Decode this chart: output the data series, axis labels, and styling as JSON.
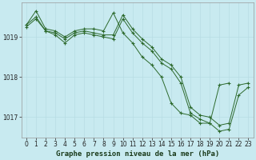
{
  "title": "Graphe pression niveau de la mer (hPa)",
  "background_color": "#c8eaf0",
  "grid_color": "#b8dde4",
  "line_color": "#2d6a2d",
  "xlim": [
    -0.5,
    23.5
  ],
  "ylim": [
    1016.5,
    1019.85
  ],
  "yticks": [
    1017,
    1018,
    1019
  ],
  "xticks": [
    0,
    1,
    2,
    3,
    4,
    5,
    6,
    7,
    8,
    9,
    10,
    11,
    12,
    13,
    14,
    15,
    16,
    17,
    18,
    19,
    20,
    21,
    22,
    23
  ],
  "series": [
    [
      1019.3,
      1019.65,
      1019.2,
      1019.15,
      1019.0,
      1019.15,
      1019.2,
      1019.2,
      1019.15,
      1019.6,
      1019.1,
      1018.85,
      1018.5,
      1018.3,
      1018.0,
      1017.35,
      1017.1,
      1017.05,
      1016.85,
      1016.85,
      1017.8,
      1017.85,
      null,
      null
    ],
    [
      1019.3,
      1019.5,
      1019.15,
      1019.1,
      1018.95,
      1019.1,
      1019.15,
      1019.1,
      1019.05,
      1019.05,
      1019.55,
      1019.2,
      1018.95,
      1018.75,
      1018.45,
      1018.3,
      1018.0,
      1017.25,
      1017.05,
      1017.0,
      1016.8,
      1016.85,
      1017.8,
      1017.85
    ],
    [
      1019.25,
      1019.45,
      1019.15,
      1019.05,
      1018.85,
      1019.05,
      1019.1,
      1019.05,
      1019.0,
      1018.95,
      1019.45,
      1019.1,
      1018.85,
      1018.65,
      1018.35,
      1018.2,
      1017.85,
      1017.1,
      1016.95,
      1016.85,
      1016.65,
      1016.7,
      1017.55,
      1017.75
    ]
  ],
  "title_fontsize": 6.5,
  "tick_fontsize": 5.5
}
